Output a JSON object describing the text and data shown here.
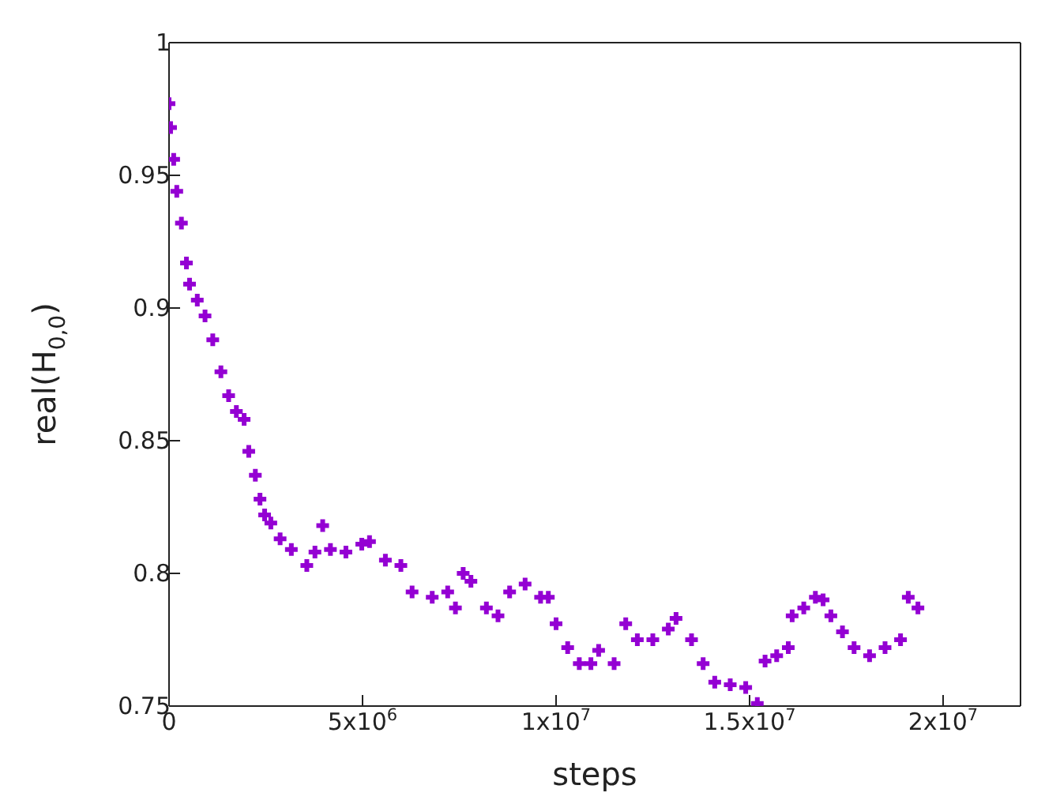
{
  "chart_data": {
    "type": "scatter",
    "xlabel": "steps",
    "ylabel": "real(H$_{0,0}$)",
    "marker": "cross",
    "grid": false,
    "xlim": [
      0,
      22000000
    ],
    "ylim": [
      0.75,
      1
    ],
    "xticks": [
      0,
      {
        "value": 5000000,
        "label": "5x10$^{6}$"
      },
      {
        "value": 10000000,
        "label": "1x10$^{7}$"
      },
      {
        "value": 15000000,
        "label": "1.5x10$^{7}$"
      },
      {
        "value": 20000000,
        "label": "2x10$^{7}$"
      }
    ],
    "yticks": [
      0.75,
      0.8,
      0.85,
      0.9,
      0.95,
      1
    ],
    "series": [
      {
        "color": "#9400d3",
        "x": [
          0,
          40000,
          120000,
          200000,
          320000,
          450000,
          530000,
          730000,
          930000,
          1130000,
          1340000,
          1540000,
          1740000,
          1940000,
          2060000,
          2230000,
          2350000,
          2470000,
          2630000,
          2870000,
          3160000,
          3560000,
          3770000,
          3970000,
          4170000,
          4570000,
          4980000,
          5180000,
          5590000,
          5990000,
          6280000,
          6800000,
          7200000,
          7400000,
          7600000,
          7800000,
          8200000,
          8500000,
          8800000,
          9200000,
          9600000,
          9800000,
          10000000,
          10300000,
          10600000,
          10900000,
          11100000,
          11500000,
          11800000,
          12100000,
          12500000,
          12900000,
          13100000,
          13500000,
          13800000,
          14100000,
          14500000,
          14900000,
          15200000,
          15400000,
          15700000,
          16000000,
          16100000,
          16400000,
          16700000,
          16900000,
          17100000,
          17400000,
          17700000,
          18100000,
          18500000,
          18900000,
          19100000,
          19350000
        ],
        "values": [
          0.977,
          0.968,
          0.956,
          0.944,
          0.932,
          0.917,
          0.909,
          0.903,
          0.897,
          0.888,
          0.876,
          0.867,
          0.861,
          0.858,
          0.846,
          0.837,
          0.828,
          0.822,
          0.819,
          0.813,
          0.809,
          0.803,
          0.808,
          0.818,
          0.809,
          0.808,
          0.811,
          0.812,
          0.805,
          0.803,
          0.793,
          0.791,
          0.793,
          0.787,
          0.8,
          0.797,
          0.787,
          0.784,
          0.793,
          0.796,
          0.791,
          0.791,
          0.781,
          0.772,
          0.766,
          0.766,
          0.771,
          0.766,
          0.781,
          0.775,
          0.775,
          0.779,
          0.783,
          0.775,
          0.766,
          0.759,
          0.758,
          0.757,
          0.751,
          0.767,
          0.769,
          0.772,
          0.784,
          0.787,
          0.791,
          0.79,
          0.784,
          0.778,
          0.772,
          0.769,
          0.772,
          0.775,
          0.791,
          0.787
        ]
      }
    ]
  }
}
